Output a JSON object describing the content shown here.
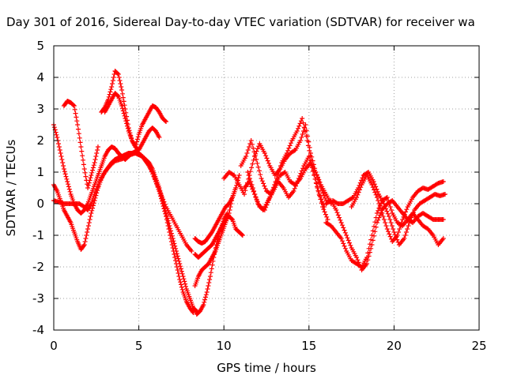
{
  "chart_data": {
    "type": "scatter",
    "title": "Day 301 of 2016, Sidereal Day-to-day VTEC variation (SDTVAR) for receiver wa",
    "xlabel": "GPS time / hours",
    "ylabel": "SDTVAR / TECUs",
    "xlim": [
      0,
      25
    ],
    "ylim": [
      -4,
      5
    ],
    "xticks": [
      "0",
      "5",
      "10",
      "15",
      "20",
      "25"
    ],
    "yticks": [
      "-4",
      "-3",
      "-2",
      "-1",
      "0",
      "1",
      "2",
      "3",
      "4",
      "5"
    ],
    "grid": true,
    "marker": "+",
    "color": "#ff0000",
    "series": [
      {
        "x": [
          0.0,
          0.2,
          0.4,
          0.6,
          0.8,
          1.0,
          1.2,
          1.4,
          1.6,
          1.8,
          2.0,
          2.2,
          2.4,
          2.6,
          2.8,
          3.0,
          3.2,
          3.4,
          3.6,
          3.8,
          4.0,
          4.2,
          4.4,
          4.6,
          4.8,
          5.0,
          5.2,
          5.4,
          5.6,
          5.8,
          6.0,
          6.2,
          6.4,
          6.6,
          6.8,
          7.0,
          7.2,
          7.4,
          7.6,
          7.8,
          8.0,
          8.2
        ],
        "y": [
          2.5,
          2.1,
          1.6,
          1.1,
          0.7,
          0.3,
          0.0,
          -0.2,
          -0.3,
          -0.2,
          0.0,
          0.3,
          0.6,
          0.9,
          1.2,
          1.5,
          1.7,
          1.8,
          1.75,
          1.6,
          1.5,
          1.4,
          1.5,
          1.6,
          1.65,
          1.6,
          1.5,
          1.35,
          1.2,
          1.0,
          0.7,
          0.4,
          0.0,
          -0.4,
          -0.9,
          -1.4,
          -1.9,
          -2.4,
          -2.8,
          -3.1,
          -3.3,
          -3.45
        ]
      },
      {
        "x": [
          0.0,
          0.2,
          0.4,
          0.6,
          0.8,
          1.0,
          1.2,
          1.4,
          1.6,
          1.8,
          2.0,
          2.2,
          2.4,
          2.6,
          2.8,
          3.0,
          3.2,
          3.4,
          3.6,
          3.8,
          4.0,
          4.2,
          4.4,
          4.6,
          4.8,
          5.0,
          5.2,
          5.4,
          5.6,
          5.8,
          6.0,
          6.2,
          6.4,
          6.6,
          6.8,
          7.0,
          7.2,
          7.4,
          7.6,
          7.8,
          8.0,
          8.2,
          8.4
        ],
        "y": [
          0.6,
          0.4,
          0.1,
          -0.2,
          -0.4,
          -0.6,
          -0.9,
          -1.2,
          -1.45,
          -1.3,
          -0.8,
          -0.3,
          0.1,
          0.5,
          0.8,
          1.0,
          1.15,
          1.3,
          1.4,
          1.45,
          1.5,
          1.55,
          1.6,
          1.6,
          1.6,
          1.55,
          1.5,
          1.4,
          1.3,
          1.1,
          0.8,
          0.5,
          0.1,
          -0.3,
          -0.7,
          -1.1,
          -1.5,
          -1.9,
          -2.3,
          -2.7,
          -3.0,
          -3.3,
          -3.4
        ]
      },
      {
        "x": [
          0.0,
          0.3,
          0.6,
          0.9,
          1.2,
          1.5,
          1.8,
          2.0,
          2.2,
          2.4,
          2.7,
          3.0,
          3.3,
          3.6,
          3.9,
          4.2,
          4.5,
          4.8,
          5.1,
          5.4,
          5.7,
          6.0,
          6.3,
          6.6,
          6.9,
          7.2,
          7.5,
          7.8,
          8.1
        ],
        "y": [
          0.1,
          0.05,
          0.0,
          0.0,
          0.0,
          0.0,
          -0.1,
          -0.2,
          0.0,
          0.3,
          0.7,
          1.0,
          1.2,
          1.35,
          1.4,
          1.45,
          1.55,
          1.6,
          1.55,
          1.4,
          1.1,
          0.7,
          0.3,
          -0.1,
          -0.4,
          -0.7,
          -1.0,
          -1.3,
          -1.5
        ]
      },
      {
        "x": [
          0.6,
          0.8,
          1.0,
          1.2,
          1.4,
          1.6,
          1.8,
          2.0,
          2.2,
          2.4,
          2.6
        ],
        "y": [
          3.1,
          3.25,
          3.2,
          3.1,
          2.5,
          1.8,
          1.1,
          0.5,
          0.9,
          1.3,
          1.8
        ]
      },
      {
        "x": [
          2.8,
          3.0,
          3.2,
          3.4,
          3.6,
          3.8,
          4.0,
          4.2,
          4.4,
          4.6,
          4.8,
          5.0,
          5.2,
          5.4,
          5.6,
          5.8,
          6.0,
          6.2,
          6.4,
          6.6
        ],
        "y": [
          2.9,
          3.05,
          3.3,
          3.7,
          4.2,
          4.1,
          3.6,
          3.0,
          2.4,
          2.0,
          1.8,
          2.2,
          2.5,
          2.7,
          2.9,
          3.1,
          3.05,
          2.9,
          2.7,
          2.6
        ]
      },
      {
        "x": [
          3.0,
          3.2,
          3.4,
          3.6,
          3.8,
          4.0,
          4.2,
          4.4,
          4.6,
          4.8,
          5.0,
          5.2,
          5.4,
          5.6,
          5.8,
          6.0,
          6.2
        ],
        "y": [
          2.9,
          3.1,
          3.3,
          3.5,
          3.4,
          3.1,
          2.7,
          2.3,
          2.0,
          1.8,
          1.7,
          1.9,
          2.1,
          2.3,
          2.4,
          2.3,
          2.1
        ]
      },
      {
        "x": [
          8.3,
          8.5,
          8.7,
          8.9,
          9.1,
          9.3,
          9.5,
          9.7,
          9.9,
          10.1,
          10.3,
          10.5,
          10.7,
          10.9
        ],
        "y": [
          -1.1,
          -1.2,
          -1.25,
          -1.2,
          -1.05,
          -0.9,
          -0.7,
          -0.5,
          -0.3,
          -0.1,
          0.0,
          0.2,
          0.5,
          0.9
        ]
      },
      {
        "x": [
          8.3,
          8.5,
          8.7,
          8.9,
          9.1,
          9.3,
          9.5,
          9.7,
          9.9,
          10.1,
          10.3,
          10.5,
          10.7,
          10.9,
          11.1
        ],
        "y": [
          -1.6,
          -1.7,
          -1.6,
          -1.5,
          -1.4,
          -1.3,
          -1.1,
          -0.9,
          -0.7,
          -0.5,
          -0.4,
          -0.5,
          -0.8,
          -0.9,
          -1.0
        ]
      },
      {
        "x": [
          8.3,
          8.5,
          8.7,
          8.9,
          9.1,
          9.3,
          9.5,
          9.7,
          9.9,
          10.1,
          10.3,
          10.5,
          10.7
        ],
        "y": [
          -2.6,
          -2.3,
          -2.1,
          -2.0,
          -1.9,
          -1.7,
          -1.5,
          -1.2,
          -0.9,
          -0.6,
          -0.3,
          0.2,
          0.5
        ]
      },
      {
        "x": [
          8.4,
          8.6,
          8.8,
          9.0,
          9.2,
          9.4,
          9.6,
          9.8,
          10.0,
          10.2
        ],
        "y": [
          -3.5,
          -3.4,
          -3.2,
          -2.8,
          -2.3,
          -1.7,
          -1.2,
          -0.8,
          -0.5,
          -0.3
        ]
      },
      {
        "x": [
          10.0,
          10.3,
          10.6,
          10.9,
          11.2,
          11.5,
          11.8,
          12.1,
          12.4,
          12.7,
          13.0,
          13.3,
          13.6,
          13.9,
          14.2,
          14.5,
          14.8,
          15.1,
          15.4,
          15.7,
          16.0,
          16.3
        ],
        "y": [
          0.8,
          1.0,
          0.9,
          0.6,
          0.3,
          0.9,
          1.5,
          1.9,
          1.6,
          1.2,
          0.9,
          1.1,
          1.4,
          1.6,
          1.7,
          2.0,
          2.5,
          1.6,
          1.0,
          0.6,
          0.3,
          0.0
        ]
      },
      {
        "x": [
          11.0,
          11.3,
          11.6,
          11.9,
          12.2,
          12.5,
          12.8,
          13.1,
          13.4,
          13.7,
          14.0,
          14.3,
          14.6,
          14.9,
          15.2,
          15.5,
          15.8,
          16.1
        ],
        "y": [
          1.2,
          1.5,
          2.0,
          1.4,
          0.8,
          0.4,
          0.3,
          0.8,
          1.3,
          1.6,
          2.0,
          2.3,
          2.7,
          2.0,
          1.2,
          0.5,
          -0.1,
          -0.5
        ]
      },
      {
        "x": [
          11.2,
          11.5,
          11.8,
          12.1,
          12.4,
          12.7,
          13.0,
          13.3,
          13.6,
          13.9,
          14.2,
          14.5,
          14.8,
          15.1,
          15.4,
          15.7,
          16.0
        ],
        "y": [
          0.5,
          0.7,
          0.3,
          -0.1,
          -0.2,
          0.2,
          0.6,
          0.9,
          1.0,
          0.7,
          0.6,
          0.8,
          1.1,
          1.3,
          1.0,
          0.5,
          0.1
        ]
      },
      {
        "x": [
          11.4,
          11.7,
          12.0,
          12.3,
          12.6,
          12.9,
          13.2,
          13.5,
          13.8,
          14.1,
          14.4,
          14.7,
          15.0,
          15.3,
          15.6,
          15.9
        ],
        "y": [
          1.0,
          0.5,
          0.0,
          -0.2,
          0.1,
          0.4,
          0.7,
          0.5,
          0.2,
          0.4,
          0.8,
          1.2,
          1.5,
          0.9,
          0.3,
          -0.1
        ]
      },
      {
        "x": [
          16.0,
          16.3,
          16.6,
          16.9,
          17.2,
          17.5,
          17.8,
          18.1,
          18.4,
          18.7,
          19.0,
          19.3,
          19.6,
          19.9,
          20.2,
          20.5,
          20.8,
          21.1,
          21.4,
          21.7,
          22.0,
          22.3,
          22.6,
          22.9
        ],
        "y": [
          -0.6,
          -0.7,
          -0.9,
          -1.1,
          -1.5,
          -1.8,
          -1.9,
          -2.0,
          -1.7,
          -1.0,
          -0.3,
          0.1,
          0.2,
          -0.3,
          -0.6,
          -0.7,
          -0.5,
          -0.3,
          -0.5,
          -0.7,
          -0.8,
          -1.0,
          -1.3,
          -1.1
        ]
      },
      {
        "x": [
          16.0,
          16.3,
          16.6,
          16.9,
          17.2,
          17.5,
          17.8,
          18.1,
          18.4,
          18.7,
          19.0,
          19.3,
          19.6,
          19.9,
          20.2,
          20.5,
          20.8,
          21.1,
          21.4,
          21.7,
          22.0,
          22.3,
          22.6,
          22.9
        ],
        "y": [
          0.0,
          0.1,
          -0.2,
          -0.6,
          -1.0,
          -1.4,
          -1.7,
          -2.1,
          -1.9,
          -1.3,
          -0.6,
          -0.2,
          0.0,
          0.1,
          -0.1,
          -0.3,
          -0.5,
          -0.6,
          -0.4,
          -0.3,
          -0.4,
          -0.5,
          -0.5,
          -0.5
        ]
      },
      {
        "x": [
          16.4,
          16.7,
          17.0,
          17.3,
          17.6,
          17.9,
          18.2,
          18.5,
          18.8,
          19.1,
          19.4,
          19.7,
          20.0,
          20.3,
          20.6,
          20.9,
          21.2,
          21.5,
          21.8,
          22.1,
          22.4,
          22.7,
          23.0
        ],
        "y": [
          0.1,
          0.0,
          0.0,
          0.1,
          0.2,
          0.5,
          0.9,
          1.0,
          0.7,
          0.3,
          0.0,
          -0.4,
          -0.9,
          -1.3,
          -1.1,
          -0.6,
          -0.2,
          0.0,
          0.1,
          0.2,
          0.3,
          0.25,
          0.3
        ]
      },
      {
        "x": [
          17.5,
          17.8,
          18.1,
          18.4,
          18.7,
          19.0,
          19.3,
          19.6,
          19.9,
          20.2,
          20.5,
          20.8,
          21.1,
          21.4,
          21.7,
          22.0,
          22.3,
          22.6,
          22.9
        ],
        "y": [
          -0.1,
          0.2,
          0.6,
          0.9,
          0.6,
          0.2,
          -0.3,
          -0.8,
          -1.2,
          -1.0,
          -0.5,
          -0.1,
          0.2,
          0.4,
          0.5,
          0.45,
          0.55,
          0.65,
          0.7
        ]
      }
    ]
  }
}
